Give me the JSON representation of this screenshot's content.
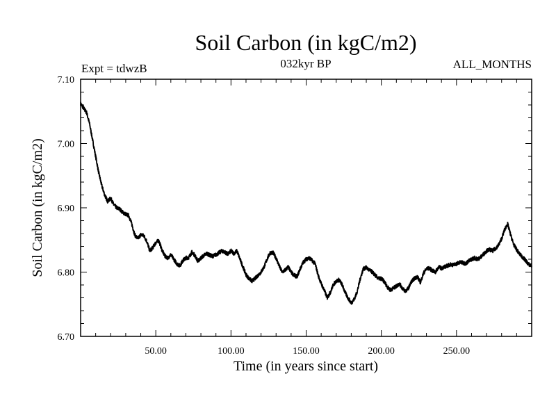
{
  "chart_data": {
    "type": "line",
    "title": "Soil Carbon (in kgC/m2)",
    "subtitle": "032kyr BP",
    "left_note": "Expt = tdwzB",
    "right_note": "ALL_MONTHS",
    "xlabel": "Time (in years since start)",
    "ylabel": "Soil Carbon (in kgC/m2)",
    "xlim": [
      0,
      300
    ],
    "ylim": [
      6.7,
      7.1
    ],
    "x_ticks": [
      50,
      100,
      150,
      200,
      250
    ],
    "x_tick_labels": [
      "50.00",
      "100.00",
      "150.00",
      "200.00",
      "250.00"
    ],
    "y_ticks": [
      6.7,
      6.8,
      6.9,
      7.0,
      7.1
    ],
    "y_tick_labels": [
      "6.70",
      "6.80",
      "6.90",
      "7.00",
      "7.10"
    ],
    "grid": false,
    "line_color": "#000000",
    "series": [
      {
        "x": [
          0,
          2,
          4,
          6,
          8,
          10,
          12,
          14,
          16,
          18,
          20,
          22,
          24,
          26,
          28,
          30,
          32,
          34,
          36,
          38,
          40,
          42,
          44,
          46,
          48,
          50,
          52,
          54,
          56,
          58,
          60,
          62,
          64,
          66,
          68,
          70,
          72,
          74,
          76,
          78,
          80,
          82,
          84,
          86,
          88,
          90,
          92,
          94,
          96,
          98,
          100,
          102,
          104,
          106,
          108,
          110,
          112,
          114,
          116,
          118,
          120,
          122,
          124,
          126,
          128,
          130,
          132,
          134,
          136,
          138,
          140,
          142,
          144,
          146,
          148,
          150,
          152,
          154,
          156,
          158,
          160,
          162,
          164,
          166,
          168,
          170,
          172,
          174,
          176,
          178,
          180,
          182,
          184,
          186,
          188,
          190,
          192,
          194,
          196,
          198,
          200,
          202,
          204,
          206,
          208,
          210,
          212,
          214,
          216,
          218,
          220,
          222,
          224,
          226,
          228,
          230,
          232,
          234,
          236,
          238,
          240,
          242,
          244,
          246,
          248,
          250,
          252,
          254,
          256,
          258,
          260,
          262,
          264,
          266,
          268,
          270,
          272,
          274,
          276,
          278,
          280,
          282,
          284,
          286,
          288,
          290,
          292,
          294,
          296,
          298,
          300
        ],
        "y": [
          7.062,
          7.055,
          7.048,
          7.03,
          7.005,
          6.98,
          6.955,
          6.935,
          6.92,
          6.91,
          6.915,
          6.905,
          6.9,
          6.898,
          6.893,
          6.89,
          6.888,
          6.875,
          6.858,
          6.852,
          6.858,
          6.857,
          6.848,
          6.833,
          6.838,
          6.846,
          6.849,
          6.835,
          6.825,
          6.822,
          6.827,
          6.82,
          6.813,
          6.81,
          6.818,
          6.822,
          6.823,
          6.831,
          6.826,
          6.817,
          6.822,
          6.826,
          6.829,
          6.826,
          6.825,
          6.827,
          6.83,
          6.833,
          6.831,
          6.828,
          6.833,
          6.829,
          6.833,
          6.82,
          6.808,
          6.796,
          6.79,
          6.786,
          6.79,
          6.795,
          6.8,
          6.808,
          6.82,
          6.83,
          6.83,
          6.822,
          6.81,
          6.8,
          6.803,
          6.808,
          6.8,
          6.795,
          6.793,
          6.805,
          6.815,
          6.82,
          6.822,
          6.818,
          6.813,
          6.795,
          6.782,
          6.772,
          6.76,
          6.768,
          6.78,
          6.786,
          6.788,
          6.78,
          6.768,
          6.759,
          6.752,
          6.758,
          6.77,
          6.79,
          6.805,
          6.807,
          6.803,
          6.8,
          6.795,
          6.79,
          6.79,
          6.785,
          6.777,
          6.772,
          6.775,
          6.778,
          6.782,
          6.775,
          6.77,
          6.775,
          6.785,
          6.79,
          6.793,
          6.784,
          6.798,
          6.805,
          6.806,
          6.802,
          6.8,
          6.808,
          6.806,
          6.808,
          6.81,
          6.812,
          6.811,
          6.813,
          6.815,
          6.815,
          6.813,
          6.817,
          6.82,
          6.822,
          6.82,
          6.823,
          6.828,
          6.833,
          6.835,
          6.833,
          6.837,
          6.842,
          6.852,
          6.866,
          6.875,
          6.858,
          6.843,
          6.835,
          6.828,
          6.823,
          6.818,
          6.812,
          6.81
        ]
      }
    ]
  }
}
